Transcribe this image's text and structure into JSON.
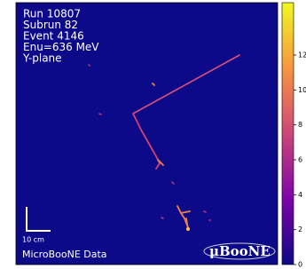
{
  "event": {
    "lines": [
      "Run 10807",
      "Subrun 82",
      "Event 4146",
      "Enu=636 MeV",
      "Y-plane"
    ]
  },
  "scale_bar": "10 cm",
  "footer": "MicroBooNE Data",
  "logo": "μBooNE",
  "colorbar": {
    "lim": [
      0,
      15
    ],
    "ticks": [
      0,
      2,
      4,
      6,
      8,
      10,
      12
    ]
  }
}
